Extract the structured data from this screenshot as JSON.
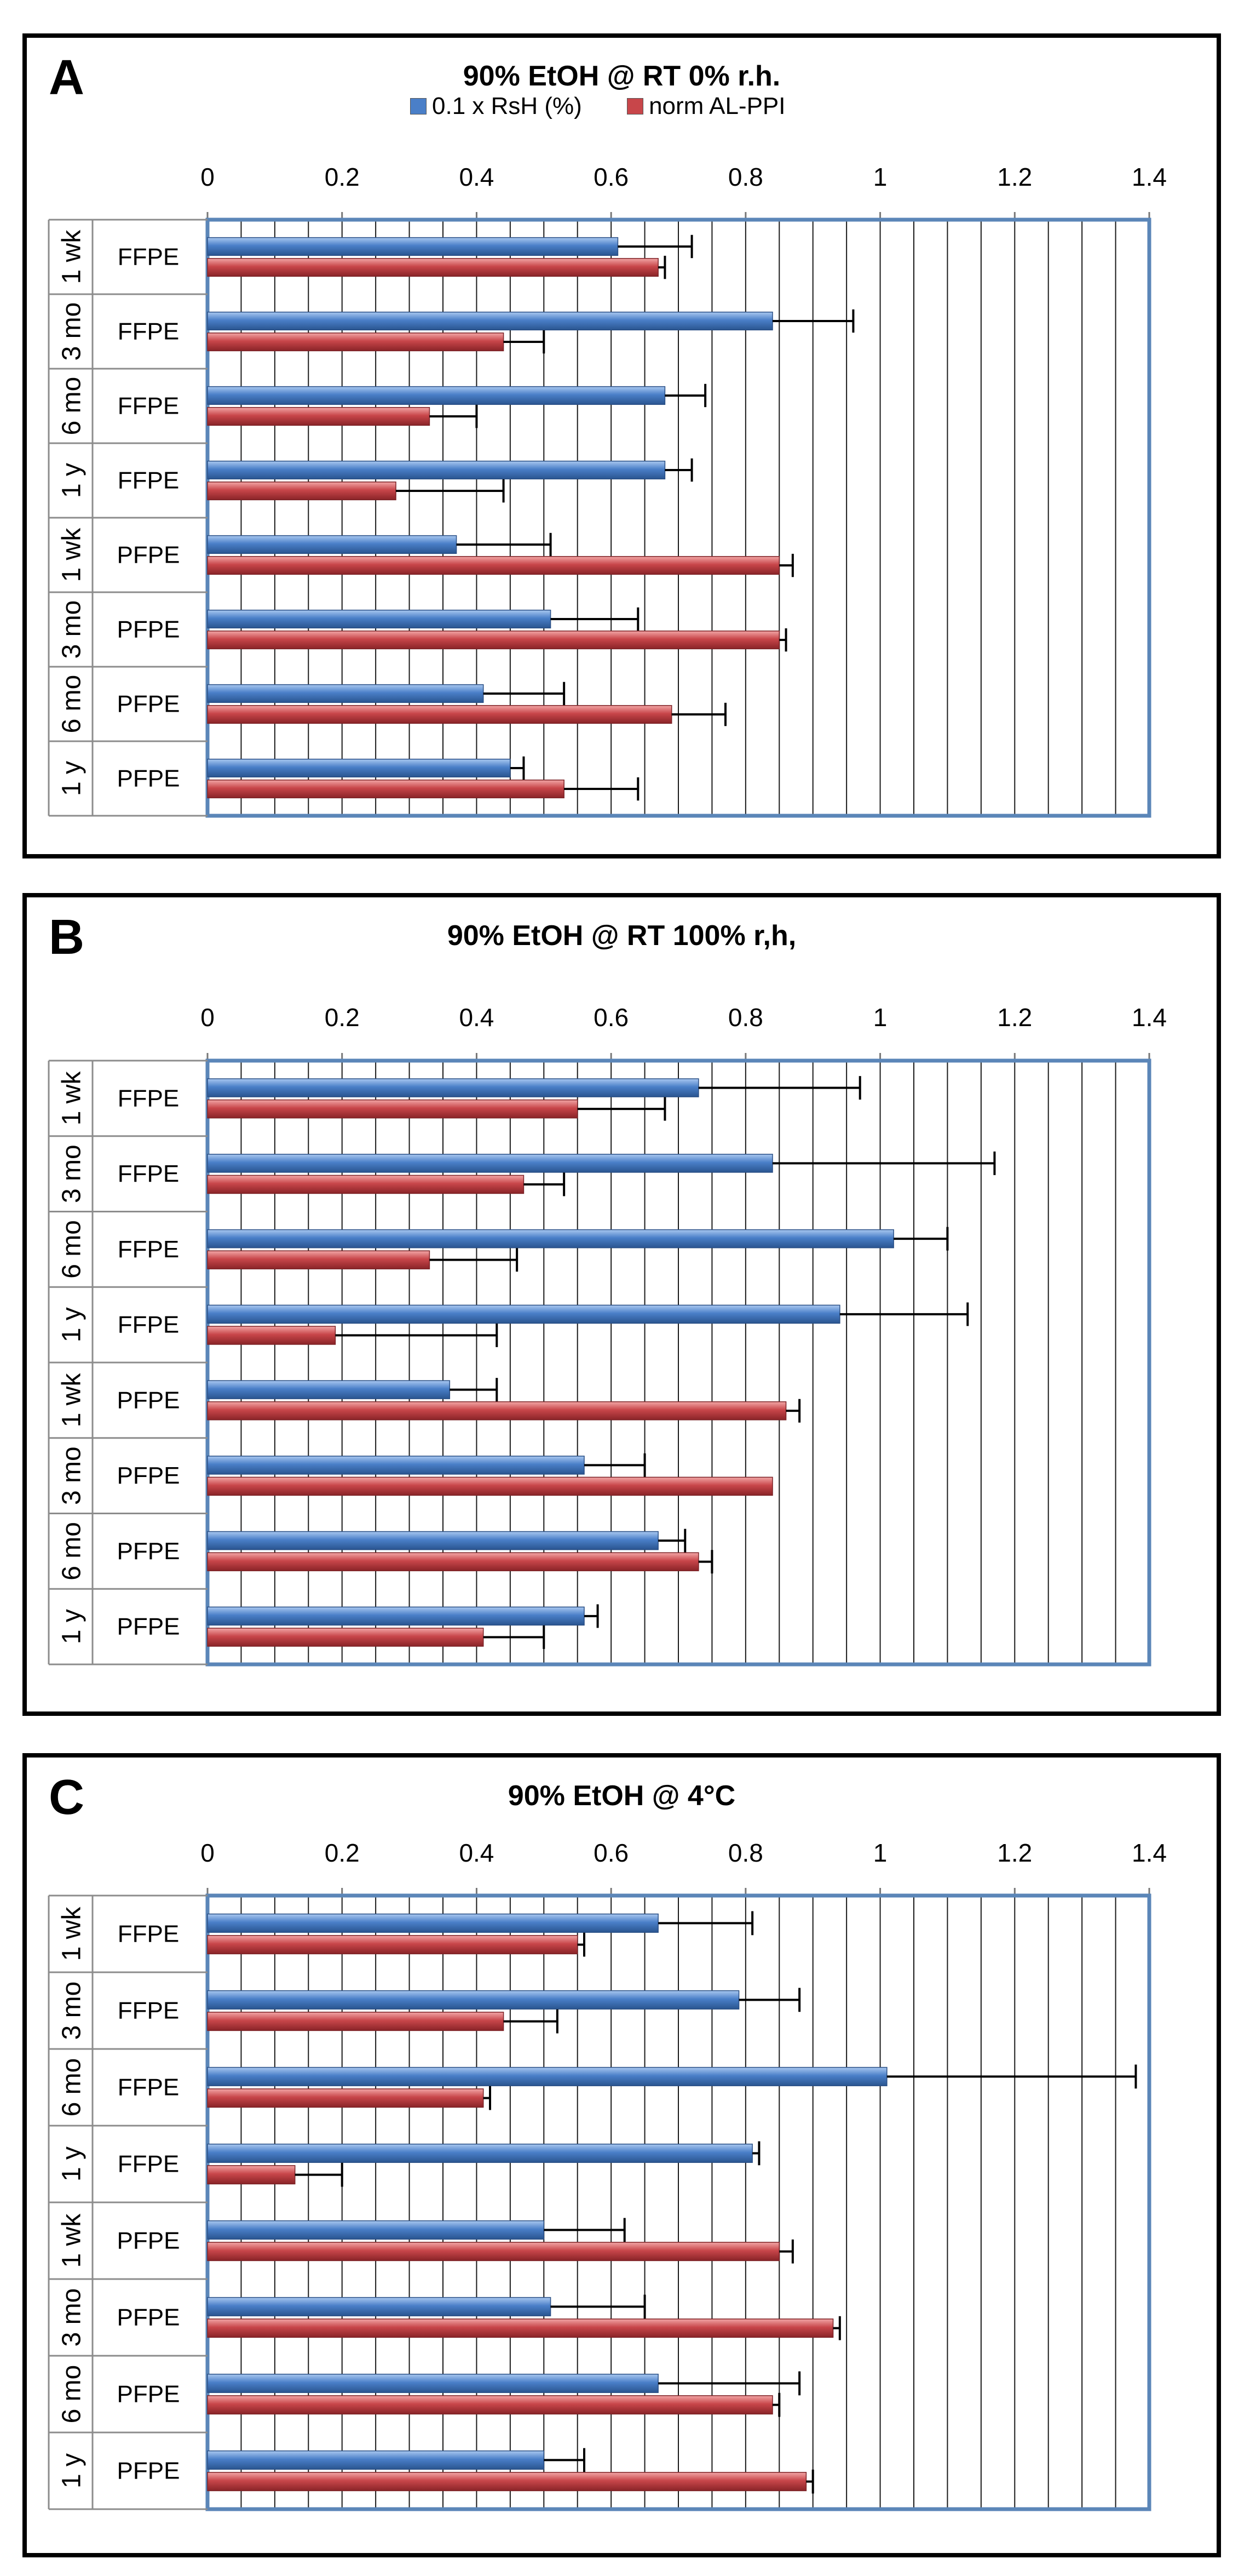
{
  "legend": {
    "series": [
      {
        "name": "0.1 x RsH (%)",
        "color": "#4a7fc8"
      },
      {
        "name": "norm AL-PPI",
        "color": "#c8464a"
      }
    ]
  },
  "chart_data": [
    {
      "type": "bar",
      "orientation": "horizontal",
      "letter": "A",
      "title": "90% EtOH @ RT 0% r.h.",
      "legend_shown": true,
      "xlim": [
        0,
        1.4
      ],
      "xticks": [
        "0",
        "0.2",
        "0.4",
        "0.6",
        "0.8",
        "1",
        "1.2",
        "1.4"
      ],
      "x_axis_position": "top",
      "grid": "vertical minor gridlines every 0.05",
      "categories": [
        {
          "time": "1 wk",
          "sample": "FFPE"
        },
        {
          "time": "3 mo",
          "sample": "FFPE"
        },
        {
          "time": "6 mo",
          "sample": "FFPE"
        },
        {
          "time": "1 y",
          "sample": "FFPE"
        },
        {
          "time": "1 wk",
          "sample": "PFPE"
        },
        {
          "time": "3 mo",
          "sample": "PFPE"
        },
        {
          "time": "6 mo",
          "sample": "PFPE"
        },
        {
          "time": "1 y",
          "sample": "PFPE"
        }
      ],
      "series": [
        {
          "name": "0.1 x RsH (%)",
          "values": [
            0.61,
            0.84,
            0.68,
            0.68,
            0.37,
            0.51,
            0.41,
            0.45
          ],
          "errors": [
            0.11,
            0.12,
            0.06,
            0.04,
            0.14,
            0.13,
            0.12,
            0.02
          ]
        },
        {
          "name": "norm AL-PPI",
          "values": [
            0.67,
            0.44,
            0.33,
            0.28,
            0.85,
            0.85,
            0.69,
            0.53
          ],
          "errors": [
            0.01,
            0.06,
            0.07,
            0.16,
            0.02,
            0.01,
            0.08,
            0.11
          ]
        }
      ]
    },
    {
      "type": "bar",
      "orientation": "horizontal",
      "letter": "B",
      "title": "90% EtOH @ RT 100% r,h,",
      "legend_shown": false,
      "xlim": [
        0,
        1.4
      ],
      "xticks": [
        "0",
        "0.2",
        "0.4",
        "0.6",
        "0.8",
        "1",
        "1.2",
        "1.4"
      ],
      "x_axis_position": "top",
      "grid": "vertical minor gridlines every 0.05",
      "categories": [
        {
          "time": "1 wk",
          "sample": "FFPE"
        },
        {
          "time": "3 mo",
          "sample": "FFPE"
        },
        {
          "time": "6 mo",
          "sample": "FFPE"
        },
        {
          "time": "1 y",
          "sample": "FFPE"
        },
        {
          "time": "1 wk",
          "sample": "PFPE"
        },
        {
          "time": "3 mo",
          "sample": "PFPE"
        },
        {
          "time": "6 mo",
          "sample": "PFPE"
        },
        {
          "time": "1 y",
          "sample": "PFPE"
        }
      ],
      "series": [
        {
          "name": "0.1 x RsH (%)",
          "values": [
            0.73,
            0.84,
            1.02,
            0.94,
            0.36,
            0.56,
            0.67,
            0.56
          ],
          "errors": [
            0.24,
            0.33,
            0.08,
            0.19,
            0.07,
            0.09,
            0.04,
            0.02
          ]
        },
        {
          "name": "norm AL-PPI",
          "values": [
            0.55,
            0.47,
            0.33,
            0.19,
            0.86,
            0.84,
            0.73,
            0.41
          ],
          "errors": [
            0.13,
            0.06,
            0.13,
            0.24,
            0.02,
            0.0,
            0.02,
            0.09
          ]
        }
      ]
    },
    {
      "type": "bar",
      "orientation": "horizontal",
      "letter": "C",
      "title": "90% EtOH @ 4°C",
      "legend_shown": false,
      "xlim": [
        0,
        1.4
      ],
      "xticks": [
        "0",
        "0.2",
        "0.4",
        "0.6",
        "0.8",
        "1",
        "1.2",
        "1.4"
      ],
      "x_axis_position": "top",
      "grid": "vertical minor gridlines every 0.05",
      "categories": [
        {
          "time": "1 wk",
          "sample": "FFPE"
        },
        {
          "time": "3 mo",
          "sample": "FFPE"
        },
        {
          "time": "6 mo",
          "sample": "FFPE"
        },
        {
          "time": "1 y",
          "sample": "FFPE"
        },
        {
          "time": "1 wk",
          "sample": "PFPE"
        },
        {
          "time": "3 mo",
          "sample": "PFPE"
        },
        {
          "time": "6 mo",
          "sample": "PFPE"
        },
        {
          "time": "1 y",
          "sample": "PFPE"
        }
      ],
      "series": [
        {
          "name": "0.1 x RsH (%)",
          "values": [
            0.67,
            0.79,
            1.01,
            0.81,
            0.5,
            0.51,
            0.67,
            0.5
          ],
          "errors": [
            0.14,
            0.09,
            0.37,
            0.01,
            0.12,
            0.14,
            0.21,
            0.06
          ]
        },
        {
          "name": "norm AL-PPI",
          "values": [
            0.55,
            0.44,
            0.41,
            0.13,
            0.85,
            0.93,
            0.84,
            0.89
          ],
          "errors": [
            0.01,
            0.08,
            0.01,
            0.07,
            0.02,
            0.01,
            0.01,
            0.01
          ]
        }
      ]
    }
  ]
}
